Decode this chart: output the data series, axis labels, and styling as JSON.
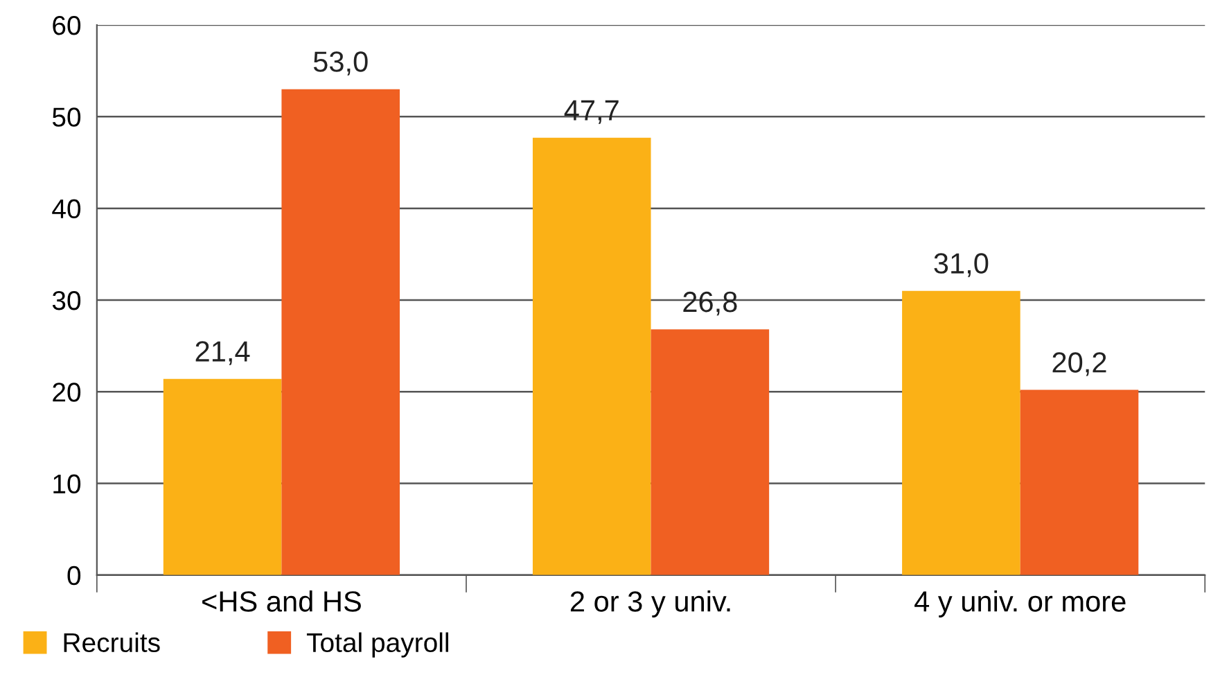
{
  "chart_data": {
    "type": "bar",
    "categories": [
      "<HS and HS",
      "2 or 3 y univ.",
      "4 y univ. or more"
    ],
    "series": [
      {
        "name": "Recruits",
        "color": "#fbb116",
        "values": [
          21.4,
          47.7,
          31.0
        ],
        "value_labels": [
          "21,4",
          "47,7",
          "31,0"
        ]
      },
      {
        "name": "Total payroll",
        "color": "#f06022",
        "values": [
          53.0,
          26.8,
          20.2
        ],
        "value_labels": [
          "53,0",
          "26,8",
          "20,2"
        ]
      }
    ],
    "ylim": [
      0,
      60
    ],
    "yticks": [
      0,
      10,
      20,
      30,
      40,
      50,
      60
    ],
    "grid": "y",
    "legend": "bottom left"
  }
}
